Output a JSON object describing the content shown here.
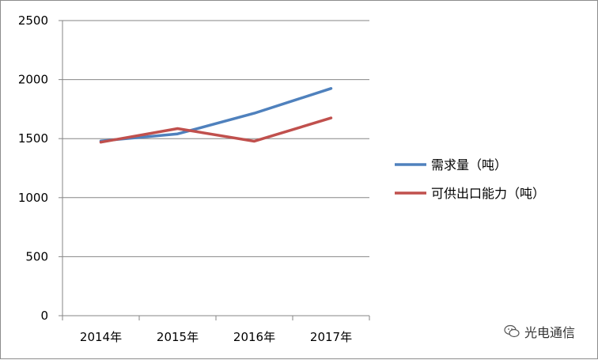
{
  "chart_data": {
    "type": "line",
    "title": "",
    "xlabel": "",
    "ylabel": "",
    "categories": [
      "2014年",
      "2015年",
      "2016年",
      "2017年"
    ],
    "ylim": [
      0,
      2500
    ],
    "yticks": [
      0,
      500,
      1000,
      1500,
      2000,
      2500
    ],
    "grid": true,
    "legend_position": "right",
    "series": [
      {
        "name": "需求量（吨）",
        "values": [
          1480,
          1540,
          1715,
          1925
        ],
        "color": "#4f81bd"
      },
      {
        "name": "可供出口能力（吨）",
        "values": [
          1470,
          1585,
          1478,
          1675
        ],
        "color": "#c0504d"
      }
    ]
  },
  "watermark": {
    "text": "光电通信",
    "icon": "wechat-icon"
  }
}
